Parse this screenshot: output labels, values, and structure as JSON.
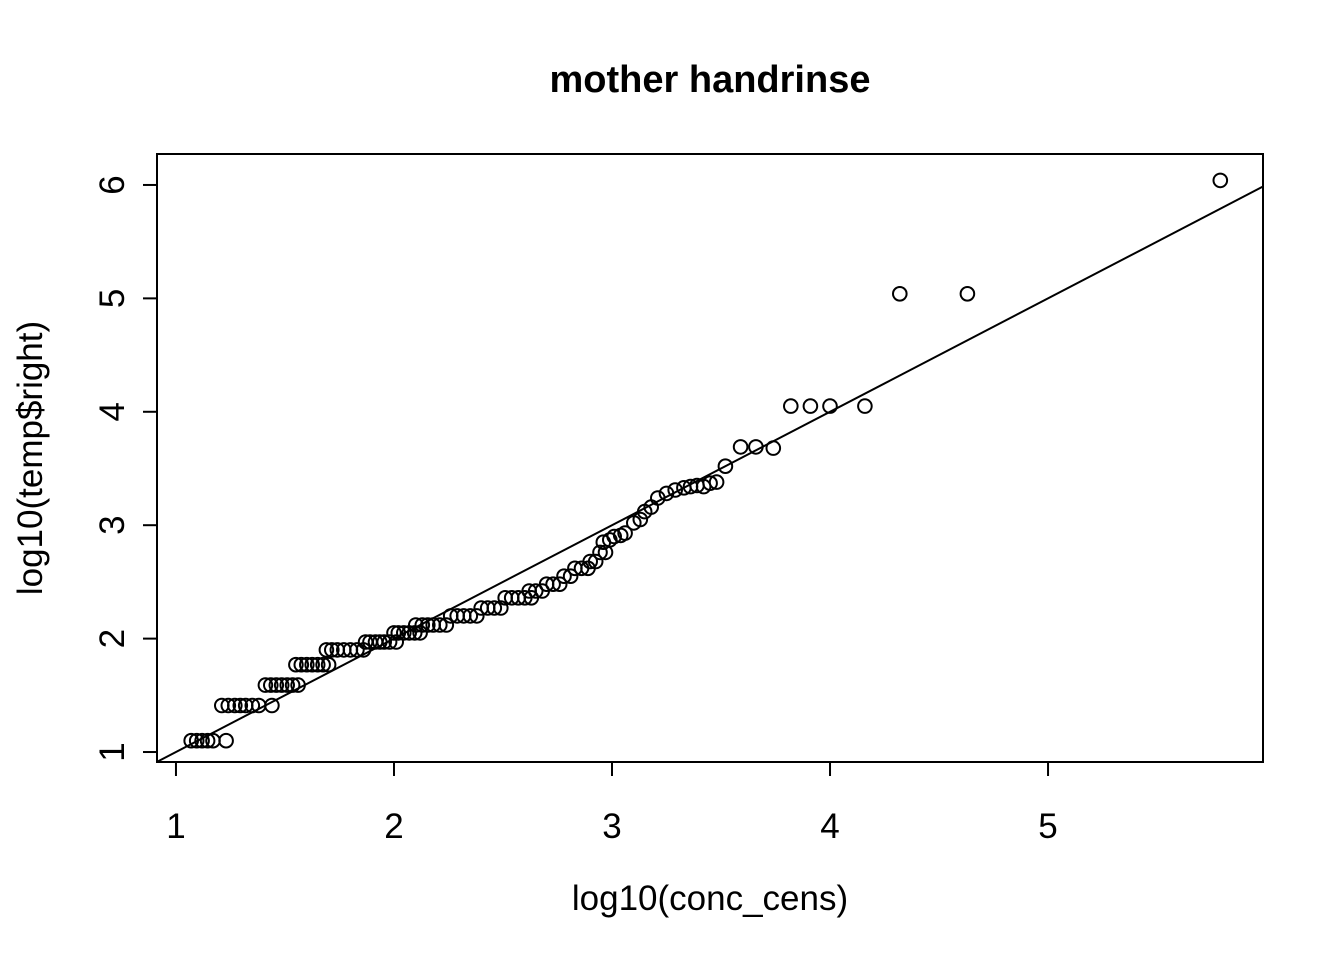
{
  "chart_data": {
    "type": "scatter",
    "title": "mother handrinse",
    "xlabel": "log10(conc_cens)",
    "ylabel": "log10(temp$right)",
    "x_ticks": [
      1,
      2,
      3,
      4,
      5
    ],
    "x_tick_labels": [
      "1",
      "2",
      "3",
      "4",
      "5"
    ],
    "y_ticks": [
      1,
      2,
      3,
      4,
      5,
      6
    ],
    "y_tick_labels": [
      "1",
      "2",
      "3",
      "4",
      "5",
      "6"
    ],
    "xlim": [
      0.913,
      5.986
    ],
    "ylim": [
      0.912,
      6.273
    ],
    "grid": false,
    "legend": null,
    "marker": "open-circle",
    "reference_line": {
      "type": "identity",
      "slope": 1,
      "intercept": 0,
      "x1": 0.913,
      "y1": 0.913,
      "x2": 5.986,
      "y2": 5.986
    },
    "colors": {
      "points": "#000000",
      "line": "#000000",
      "text": "#000000",
      "background": "#ffffff"
    },
    "points": [
      [
        1.07,
        1.1
      ],
      [
        1.095,
        1.1
      ],
      [
        1.12,
        1.1
      ],
      [
        1.145,
        1.1
      ],
      [
        1.17,
        1.1
      ],
      [
        1.23,
        1.1
      ],
      [
        1.21,
        1.41
      ],
      [
        1.24,
        1.41
      ],
      [
        1.27,
        1.41
      ],
      [
        1.295,
        1.41
      ],
      [
        1.32,
        1.41
      ],
      [
        1.35,
        1.41
      ],
      [
        1.38,
        1.41
      ],
      [
        1.44,
        1.41
      ],
      [
        1.41,
        1.59
      ],
      [
        1.435,
        1.59
      ],
      [
        1.46,
        1.59
      ],
      [
        1.485,
        1.59
      ],
      [
        1.51,
        1.59
      ],
      [
        1.535,
        1.59
      ],
      [
        1.56,
        1.59
      ],
      [
        1.55,
        1.77
      ],
      [
        1.575,
        1.77
      ],
      [
        1.6,
        1.77
      ],
      [
        1.625,
        1.77
      ],
      [
        1.65,
        1.77
      ],
      [
        1.675,
        1.77
      ],
      [
        1.7,
        1.77
      ],
      [
        1.69,
        1.9
      ],
      [
        1.715,
        1.9
      ],
      [
        1.74,
        1.9
      ],
      [
        1.77,
        1.9
      ],
      [
        1.8,
        1.9
      ],
      [
        1.83,
        1.9
      ],
      [
        1.86,
        1.9
      ],
      [
        1.87,
        1.97
      ],
      [
        1.89,
        1.97
      ],
      [
        1.915,
        1.97
      ],
      [
        1.935,
        1.97
      ],
      [
        1.955,
        1.97
      ],
      [
        1.98,
        1.97
      ],
      [
        2.01,
        1.97
      ],
      [
        2.0,
        2.05
      ],
      [
        2.02,
        2.05
      ],
      [
        2.045,
        2.05
      ],
      [
        2.07,
        2.05
      ],
      [
        2.095,
        2.05
      ],
      [
        2.12,
        2.05
      ],
      [
        2.1,
        2.12
      ],
      [
        2.13,
        2.12
      ],
      [
        2.155,
        2.12
      ],
      [
        2.18,
        2.12
      ],
      [
        2.21,
        2.12
      ],
      [
        2.24,
        2.12
      ],
      [
        2.26,
        2.2
      ],
      [
        2.29,
        2.2
      ],
      [
        2.32,
        2.2
      ],
      [
        2.35,
        2.2
      ],
      [
        2.38,
        2.2
      ],
      [
        2.4,
        2.27
      ],
      [
        2.43,
        2.27
      ],
      [
        2.46,
        2.27
      ],
      [
        2.49,
        2.27
      ],
      [
        2.51,
        2.36
      ],
      [
        2.54,
        2.36
      ],
      [
        2.57,
        2.36
      ],
      [
        2.6,
        2.36
      ],
      [
        2.63,
        2.36
      ],
      [
        2.62,
        2.42
      ],
      [
        2.65,
        2.42
      ],
      [
        2.68,
        2.42
      ],
      [
        2.7,
        2.48
      ],
      [
        2.73,
        2.48
      ],
      [
        2.76,
        2.48
      ],
      [
        2.78,
        2.55
      ],
      [
        2.81,
        2.55
      ],
      [
        2.83,
        2.62
      ],
      [
        2.86,
        2.62
      ],
      [
        2.89,
        2.62
      ],
      [
        2.9,
        2.68
      ],
      [
        2.925,
        2.68
      ],
      [
        2.945,
        2.76
      ],
      [
        2.97,
        2.76
      ],
      [
        2.96,
        2.85
      ],
      [
        2.99,
        2.87
      ],
      [
        3.01,
        2.9
      ],
      [
        3.04,
        2.91
      ],
      [
        3.06,
        2.93
      ],
      [
        3.1,
        3.02
      ],
      [
        3.13,
        3.05
      ],
      [
        3.15,
        3.12
      ],
      [
        3.18,
        3.16
      ],
      [
        3.21,
        3.24
      ],
      [
        3.25,
        3.28
      ],
      [
        3.29,
        3.31
      ],
      [
        3.33,
        3.33
      ],
      [
        3.36,
        3.34
      ],
      [
        3.39,
        3.35
      ],
      [
        3.42,
        3.34
      ],
      [
        3.45,
        3.37
      ],
      [
        3.48,
        3.38
      ],
      [
        3.52,
        3.52
      ],
      [
        3.59,
        3.69
      ],
      [
        3.66,
        3.69
      ],
      [
        3.74,
        3.68
      ],
      [
        3.82,
        4.05
      ],
      [
        3.91,
        4.05
      ],
      [
        4.0,
        4.05
      ],
      [
        4.16,
        4.05
      ],
      [
        4.32,
        5.04
      ],
      [
        4.63,
        5.04
      ],
      [
        5.79,
        6.04
      ]
    ]
  }
}
